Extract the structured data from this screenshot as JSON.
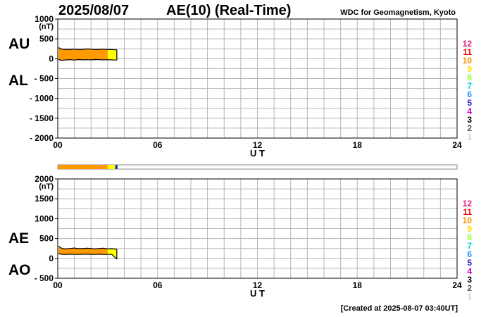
{
  "header": {
    "date": "2025/08/07",
    "title": "AE(10) (Real-Time)",
    "institution": "WDC for Geomagnetism, Kyoto"
  },
  "footer": {
    "created": "[Created at 2025-08-07 03:40UT]"
  },
  "station_legend": {
    "labels": [
      "12",
      "11",
      "10",
      "9",
      "8",
      "7",
      "6",
      "5",
      "4",
      "3",
      "2",
      "1"
    ],
    "colors": [
      "#e0197a",
      "#e60000",
      "#ff8c00",
      "#ffe000",
      "#99ff33",
      "#00d8d8",
      "#1e90ff",
      "#3a1dcc",
      "#cc00cc",
      "#000000",
      "#555555",
      "#cfcfcf"
    ]
  },
  "station_bar": {
    "segments": [
      {
        "color": "#ff9900",
        "from": 0,
        "to": 3.0
      },
      {
        "color": "#ffff00",
        "from": 3.0,
        "to": 3.45
      },
      {
        "color": "#2a3bb0",
        "from": 3.45,
        "to": 3.6
      }
    ],
    "range": [
      0,
      24
    ]
  },
  "chart_data": [
    {
      "type": "area",
      "side_labels": [
        "AU",
        "AL"
      ],
      "units": "(nT)",
      "xlabel": "U T",
      "x_ticks": [
        "00",
        "06",
        "12",
        "18",
        "24"
      ],
      "xlim": [
        0,
        24
      ],
      "ylim": [
        -2000,
        1000
      ],
      "y_ticks": [
        "1000",
        "500",
        "0",
        "- 500",
        "- 1000",
        "- 1500",
        "- 2000"
      ],
      "y_tick_values": [
        1000,
        500,
        0,
        -500,
        -1000,
        -1500,
        -2000
      ],
      "grid": true,
      "end_hour": 3.55,
      "fill_colors": [
        {
          "color": "#ff9900",
          "from": 0,
          "to": 3.0
        },
        {
          "color": "#ffff00",
          "from": 3.0,
          "to": 3.55
        }
      ],
      "series": [
        {
          "name": "AU",
          "x": [
            0.05,
            0.25,
            0.5,
            0.75,
            1.0,
            1.25,
            1.5,
            1.75,
            2.0,
            2.25,
            2.5,
            2.75,
            3.0,
            3.25,
            3.55
          ],
          "values": [
            280,
            240,
            230,
            235,
            240,
            230,
            235,
            245,
            240,
            230,
            235,
            240,
            230,
            230,
            225
          ]
        },
        {
          "name": "AL",
          "x": [
            0.05,
            0.25,
            0.5,
            0.75,
            1.0,
            1.25,
            1.5,
            1.75,
            2.0,
            2.25,
            2.5,
            2.75,
            3.0,
            3.25,
            3.55
          ],
          "values": [
            -20,
            -40,
            -30,
            -25,
            -35,
            -20,
            -30,
            -25,
            -30,
            -20,
            -25,
            -30,
            -25,
            -30,
            -35
          ]
        }
      ]
    },
    {
      "type": "area",
      "side_labels": [
        "AE",
        "AO"
      ],
      "units": "(nT)",
      "xlabel": "U T",
      "x_ticks": [
        "00",
        "06",
        "12",
        "18",
        "24"
      ],
      "xlim": [
        0,
        24
      ],
      "ylim": [
        -500,
        2000
      ],
      "y_ticks": [
        "2000",
        "1500",
        "1000",
        "500",
        "0",
        "- 500"
      ],
      "y_tick_values": [
        2000,
        1500,
        1000,
        500,
        0,
        -500
      ],
      "grid": true,
      "end_hour": 3.55,
      "fill_colors": [
        {
          "color": "#ff9900",
          "from": 0,
          "to": 3.0
        },
        {
          "color": "#ffff00",
          "from": 3.0,
          "to": 3.55
        }
      ],
      "series": [
        {
          "name": "AE",
          "x": [
            0.05,
            0.25,
            0.5,
            0.75,
            1.0,
            1.25,
            1.5,
            1.75,
            2.0,
            2.25,
            2.5,
            2.75,
            3.0,
            3.25,
            3.55
          ],
          "values": [
            310,
            250,
            240,
            250,
            260,
            245,
            250,
            255,
            250,
            240,
            250,
            255,
            240,
            245,
            230
          ]
        },
        {
          "name": "AO",
          "x": [
            0.05,
            0.25,
            0.5,
            0.75,
            1.0,
            1.25,
            1.5,
            1.75,
            2.0,
            2.25,
            2.5,
            2.75,
            3.0,
            3.25,
            3.55
          ],
          "values": [
            120,
            100,
            100,
            105,
            100,
            100,
            105,
            105,
            100,
            100,
            105,
            100,
            100,
            100,
            -20
          ]
        }
      ]
    }
  ]
}
